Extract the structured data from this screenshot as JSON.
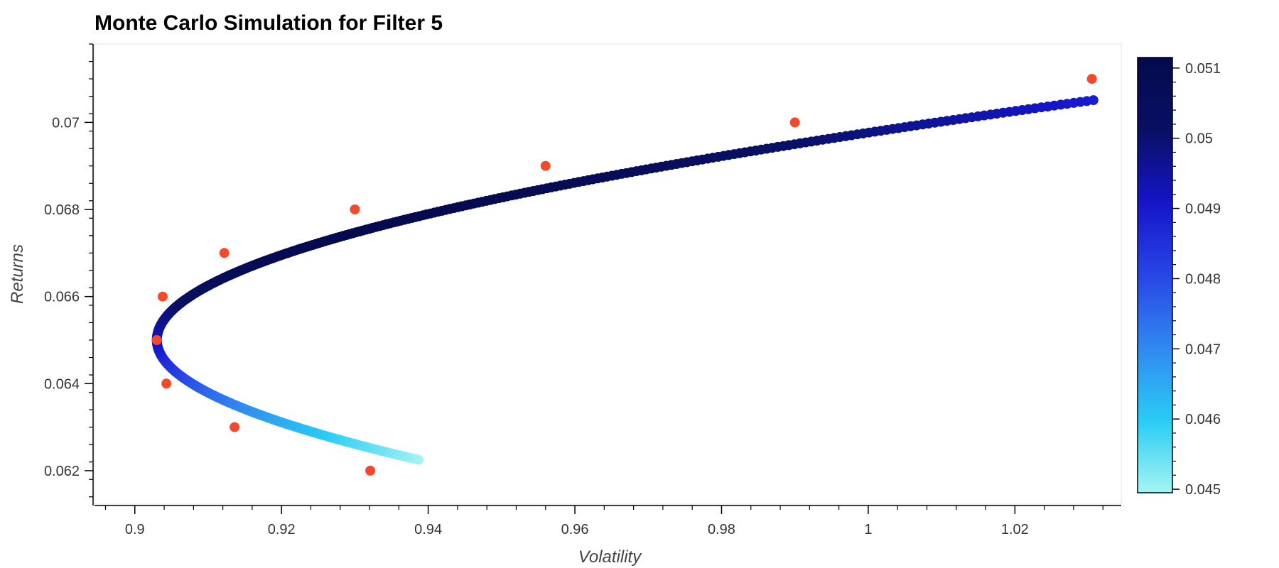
{
  "chart_data": {
    "type": "scatter",
    "title": "Monte Carlo Simulation for Filter 5",
    "xlabel": "Volatility",
    "ylabel": "Returns",
    "xlim": [
      0.8945,
      1.0345
    ],
    "ylim": [
      0.0612,
      0.0718
    ],
    "x_ticks": [
      0.9,
      0.92,
      0.94,
      0.96,
      0.98,
      1.0,
      1.02
    ],
    "x_tick_labels": [
      "0.9",
      "0.92",
      "0.94",
      "0.96",
      "0.98",
      "1",
      "1.02"
    ],
    "y_ticks": [
      0.062,
      0.064,
      0.066,
      0.068,
      0.07
    ],
    "y_tick_labels": [
      "0.062",
      "0.064",
      "0.066",
      "0.068",
      "0.07"
    ],
    "frontier": {
      "return_range": [
        0.06225,
        0.07051
      ],
      "min_volatility": 0.903,
      "min_volatility_return": 0.065,
      "color_scale_by": "sharpe"
    },
    "target_points": {
      "color": "#f4492c",
      "x": [
        0.903,
        0.9043,
        0.9038,
        0.9136,
        0.9122,
        0.9321,
        0.93,
        0.956,
        0.99,
        1.0305
      ],
      "y": [
        0.065,
        0.064,
        0.066,
        0.063,
        0.067,
        0.062,
        0.068,
        0.069,
        0.07,
        0.071
      ]
    },
    "colorbar": {
      "min": 0.04495,
      "max": 0.05115,
      "ticks": [
        0.045,
        0.046,
        0.047,
        0.048,
        0.049,
        0.05,
        0.051
      ],
      "tick_labels": [
        "0.045",
        "0.046",
        "0.047",
        "0.048",
        "0.049",
        "0.05",
        "0.051"
      ],
      "colors": [
        "#a6f4f2",
        "#28ccf4",
        "#3188f0",
        "#2845e6",
        "#1515c8",
        "#081063",
        "#050a4e"
      ]
    }
  }
}
